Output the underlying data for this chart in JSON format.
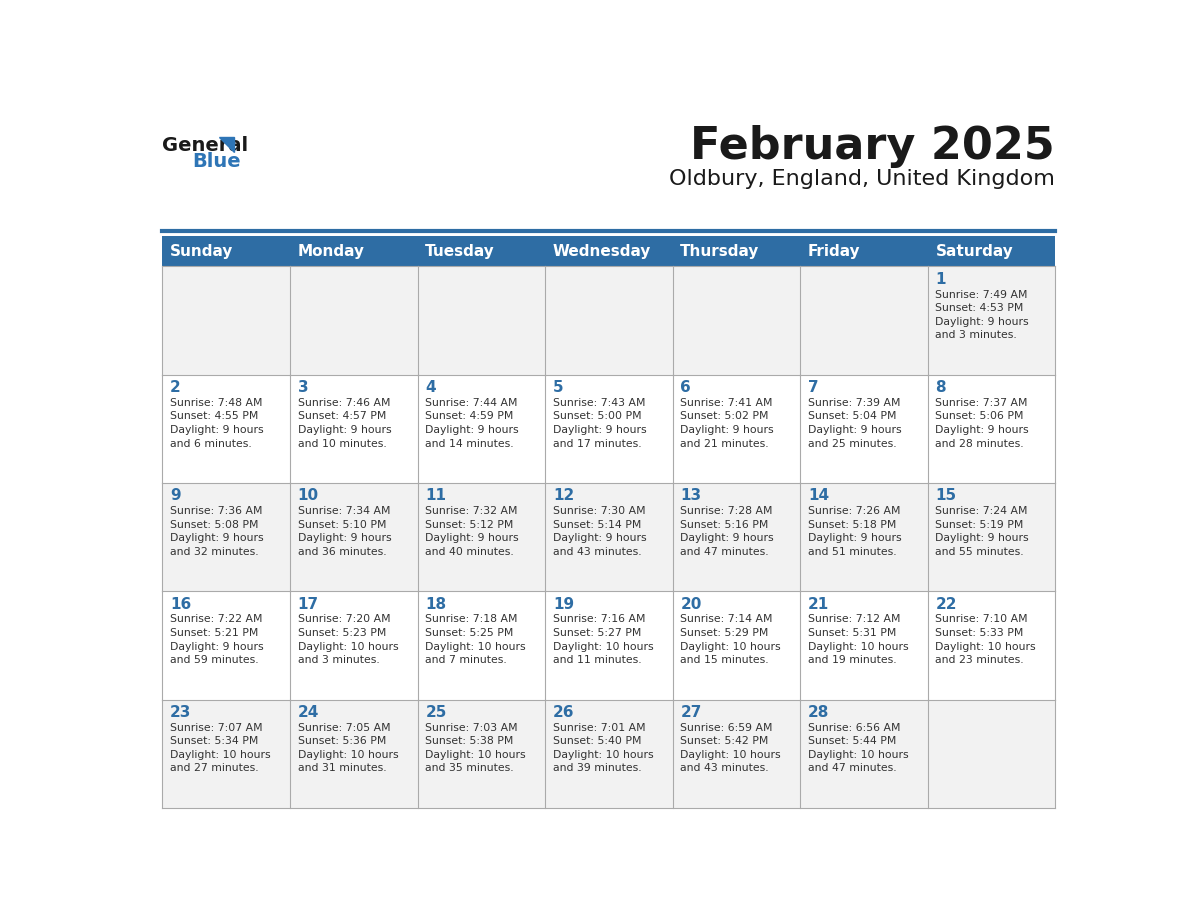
{
  "title": "February 2025",
  "subtitle": "Oldbury, England, United Kingdom",
  "header_bg": "#2E6DA4",
  "header_text_color": "#FFFFFF",
  "cell_bg_odd": "#F2F2F2",
  "cell_bg_even": "#FFFFFF",
  "cell_border_color": "#AAAAAA",
  "day_headers": [
    "Sunday",
    "Monday",
    "Tuesday",
    "Wednesday",
    "Thursday",
    "Friday",
    "Saturday"
  ],
  "title_color": "#1A1A1A",
  "subtitle_color": "#1A1A1A",
  "day_number_color": "#2E6DA4",
  "cell_text_color": "#333333",
  "logo_general_color": "#1A1A1A",
  "logo_blue_color": "#2E75B6",
  "header_line_color": "#2E6DA4",
  "weeks": [
    [
      {
        "day": null,
        "info": ""
      },
      {
        "day": null,
        "info": ""
      },
      {
        "day": null,
        "info": ""
      },
      {
        "day": null,
        "info": ""
      },
      {
        "day": null,
        "info": ""
      },
      {
        "day": null,
        "info": ""
      },
      {
        "day": 1,
        "info": "Sunrise: 7:49 AM\nSunset: 4:53 PM\nDaylight: 9 hours\nand 3 minutes."
      }
    ],
    [
      {
        "day": 2,
        "info": "Sunrise: 7:48 AM\nSunset: 4:55 PM\nDaylight: 9 hours\nand 6 minutes."
      },
      {
        "day": 3,
        "info": "Sunrise: 7:46 AM\nSunset: 4:57 PM\nDaylight: 9 hours\nand 10 minutes."
      },
      {
        "day": 4,
        "info": "Sunrise: 7:44 AM\nSunset: 4:59 PM\nDaylight: 9 hours\nand 14 minutes."
      },
      {
        "day": 5,
        "info": "Sunrise: 7:43 AM\nSunset: 5:00 PM\nDaylight: 9 hours\nand 17 minutes."
      },
      {
        "day": 6,
        "info": "Sunrise: 7:41 AM\nSunset: 5:02 PM\nDaylight: 9 hours\nand 21 minutes."
      },
      {
        "day": 7,
        "info": "Sunrise: 7:39 AM\nSunset: 5:04 PM\nDaylight: 9 hours\nand 25 minutes."
      },
      {
        "day": 8,
        "info": "Sunrise: 7:37 AM\nSunset: 5:06 PM\nDaylight: 9 hours\nand 28 minutes."
      }
    ],
    [
      {
        "day": 9,
        "info": "Sunrise: 7:36 AM\nSunset: 5:08 PM\nDaylight: 9 hours\nand 32 minutes."
      },
      {
        "day": 10,
        "info": "Sunrise: 7:34 AM\nSunset: 5:10 PM\nDaylight: 9 hours\nand 36 minutes."
      },
      {
        "day": 11,
        "info": "Sunrise: 7:32 AM\nSunset: 5:12 PM\nDaylight: 9 hours\nand 40 minutes."
      },
      {
        "day": 12,
        "info": "Sunrise: 7:30 AM\nSunset: 5:14 PM\nDaylight: 9 hours\nand 43 minutes."
      },
      {
        "day": 13,
        "info": "Sunrise: 7:28 AM\nSunset: 5:16 PM\nDaylight: 9 hours\nand 47 minutes."
      },
      {
        "day": 14,
        "info": "Sunrise: 7:26 AM\nSunset: 5:18 PM\nDaylight: 9 hours\nand 51 minutes."
      },
      {
        "day": 15,
        "info": "Sunrise: 7:24 AM\nSunset: 5:19 PM\nDaylight: 9 hours\nand 55 minutes."
      }
    ],
    [
      {
        "day": 16,
        "info": "Sunrise: 7:22 AM\nSunset: 5:21 PM\nDaylight: 9 hours\nand 59 minutes."
      },
      {
        "day": 17,
        "info": "Sunrise: 7:20 AM\nSunset: 5:23 PM\nDaylight: 10 hours\nand 3 minutes."
      },
      {
        "day": 18,
        "info": "Sunrise: 7:18 AM\nSunset: 5:25 PM\nDaylight: 10 hours\nand 7 minutes."
      },
      {
        "day": 19,
        "info": "Sunrise: 7:16 AM\nSunset: 5:27 PM\nDaylight: 10 hours\nand 11 minutes."
      },
      {
        "day": 20,
        "info": "Sunrise: 7:14 AM\nSunset: 5:29 PM\nDaylight: 10 hours\nand 15 minutes."
      },
      {
        "day": 21,
        "info": "Sunrise: 7:12 AM\nSunset: 5:31 PM\nDaylight: 10 hours\nand 19 minutes."
      },
      {
        "day": 22,
        "info": "Sunrise: 7:10 AM\nSunset: 5:33 PM\nDaylight: 10 hours\nand 23 minutes."
      }
    ],
    [
      {
        "day": 23,
        "info": "Sunrise: 7:07 AM\nSunset: 5:34 PM\nDaylight: 10 hours\nand 27 minutes."
      },
      {
        "day": 24,
        "info": "Sunrise: 7:05 AM\nSunset: 5:36 PM\nDaylight: 10 hours\nand 31 minutes."
      },
      {
        "day": 25,
        "info": "Sunrise: 7:03 AM\nSunset: 5:38 PM\nDaylight: 10 hours\nand 35 minutes."
      },
      {
        "day": 26,
        "info": "Sunrise: 7:01 AM\nSunset: 5:40 PM\nDaylight: 10 hours\nand 39 minutes."
      },
      {
        "day": 27,
        "info": "Sunrise: 6:59 AM\nSunset: 5:42 PM\nDaylight: 10 hours\nand 43 minutes."
      },
      {
        "day": 28,
        "info": "Sunrise: 6:56 AM\nSunset: 5:44 PM\nDaylight: 10 hours\nand 47 minutes."
      },
      {
        "day": null,
        "info": ""
      }
    ]
  ]
}
